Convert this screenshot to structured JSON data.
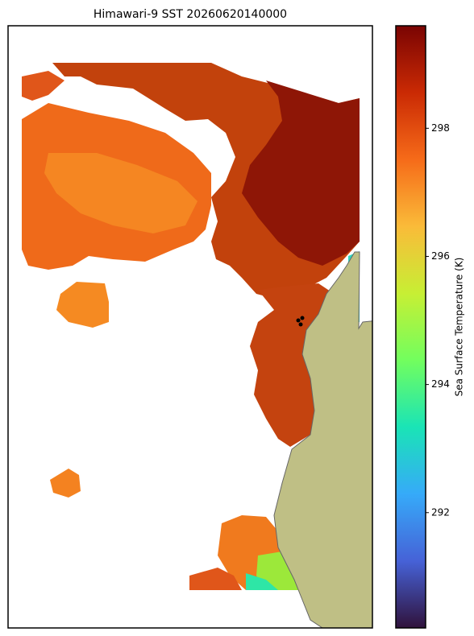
{
  "chart_data": {
    "type": "map",
    "title": "Himawari-9 SST 20260620140000",
    "colorbar": {
      "label": "Sea Surface Temperature (K)",
      "colormap": "turbo",
      "lim": [
        290.2,
        299.6
      ],
      "ticks": [
        292,
        294,
        296,
        298
      ]
    }
  }
}
